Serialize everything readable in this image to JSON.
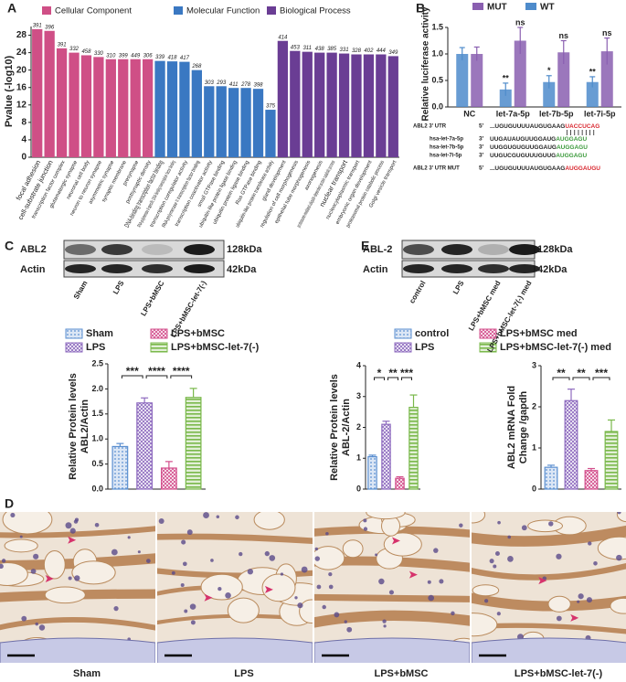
{
  "panel_labels": [
    "A",
    "B",
    "C",
    "D",
    "E"
  ],
  "chart_data": [
    {
      "type": "go_bar",
      "ylabel": "Pvalue (-log10)",
      "ylim": [
        0,
        30
      ],
      "yticks": [
        0,
        4,
        8,
        12,
        16,
        20,
        24,
        28
      ],
      "highlight_color": "#e0383f",
      "groups": [
        {
          "name": "Cellular Component",
          "color": "#cf4f86",
          "categories": [
            "focal adhesion",
            "cell-substrate junction",
            "transcription factor complex",
            "glutamatergic synapse",
            "neuronal cell body",
            "neuron to neuron synapse",
            "asymmetric synapse",
            "synaptic membrane",
            "presynapse",
            "postsynaptic density"
          ],
          "values": [
            29.4,
            29,
            25,
            24,
            23.4,
            23,
            22.5,
            22.5,
            22.5,
            22.5
          ],
          "counts": [
            391,
            396,
            391,
            332,
            458,
            330,
            310,
            399,
            449,
            306
          ],
          "highlighted": [
            0,
            1
          ]
        },
        {
          "name": "Molecular Function",
          "color": "#3a78c2",
          "categories": [
            "DNA-binding transcription factor binding",
            "RNA polymerase II-specific DNA-binding transcription factor binding",
            "transcription coregulator activity",
            "RNA polymerase II transcription factor binding",
            "transcription coactivator activity",
            "small GTPase binding",
            "ubiquitin-like protein ligase binding",
            "ubiquitin protein ligase binding",
            "Ras GTPase binding",
            "ubiquitin-like protein transferase activity"
          ],
          "values": [
            22.1,
            22,
            21.9,
            20,
            16.3,
            16.3,
            15.9,
            15.9,
            15.7,
            10.9
          ],
          "counts": [
            339,
            418,
            417,
            268,
            303,
            293,
            411,
            278,
            398,
            375
          ],
          "highlighted": [
            0
          ]
        },
        {
          "name": "Biological Process",
          "color": "#6a3d94",
          "categories": [
            "gland development",
            "regulation of cell morphogenesis",
            "epithelial tube morphogenesis",
            "axonogenesis",
            "proteasome-mediated ubiquitin-dependent protein catabolic process",
            "nuclear transport",
            "nucleocytoplasmic transport",
            "embryonic organ development",
            "proteasomal protein catabolic process",
            "Golgi vesicle transport"
          ],
          "values": [
            26.7,
            24.4,
            24.2,
            24,
            24,
            23.8,
            23.6,
            23.6,
            23.6,
            23.2
          ],
          "counts": [
            414,
            453,
            311,
            438,
            385,
            331,
            328,
            402,
            444,
            349
          ],
          "highlighted": [
            5
          ]
        }
      ]
    },
    {
      "type": "grouped_bar",
      "ylabel": "Relative luciferase activity",
      "ylim": [
        0,
        1.5
      ],
      "yticks": [
        {
          "value": 0,
          "label": "0.0"
        },
        0.5,
        {
          "value": 1,
          "label": "1.0"
        },
        1.5
      ],
      "categories": [
        "NC",
        "let-7a-5p",
        "let-7b-5p",
        "let-7i-5p"
      ],
      "series": [
        {
          "name": "WT",
          "color": "#4e8bcb",
          "values": [
            1.0,
            0.33,
            0.47,
            0.47
          ],
          "errors": [
            0.12,
            0.12,
            0.12,
            0.1
          ],
          "annotations": [
            null,
            "**",
            "*",
            "**"
          ]
        },
        {
          "name": "MUT",
          "color": "#8a5fb0",
          "values": [
            1.0,
            1.25,
            1.03,
            1.05
          ],
          "errors": [
            0.13,
            0.25,
            0.22,
            0.25
          ],
          "annotations": [
            null,
            "ns",
            "ns",
            "ns"
          ]
        }
      ]
    },
    {
      "type": "bar",
      "ylabel": [
        "Relative Protein levels",
        "ABL2/Actin"
      ],
      "ylim": [
        0,
        2.5
      ],
      "yticks": [
        {
          "value": 0,
          "label": "0.0"
        },
        0.5,
        {
          "value": 1,
          "label": "1.0"
        },
        1.5,
        {
          "value": 2,
          "label": "2.0"
        },
        2.5
      ],
      "categories": [
        "Sham",
        "LPS",
        "LPS+bMSC",
        "LPS+bMSC-let-7(-)"
      ],
      "colors": [
        "#5b8fd0",
        "#8e6bbf",
        "#d34f8c",
        "#79b84a"
      ],
      "patterns": [
        "dots",
        "checks",
        "checks",
        "stripes"
      ],
      "values": [
        0.85,
        1.72,
        0.42,
        1.83
      ],
      "errors": [
        0.06,
        0.1,
        0.13,
        0.18
      ],
      "significance": [
        "***",
        "****",
        "****"
      ]
    },
    {
      "type": "bar",
      "ylabel": [
        "Relative Protein levels",
        "ABL-2/Actin"
      ],
      "ylim": [
        0,
        4
      ],
      "yticks": [
        0,
        1,
        2,
        3,
        4
      ],
      "categories": [
        "control",
        "LPS",
        "LPS+bMSC med",
        "LPS+bMSC-let-7(-) med"
      ],
      "colors": [
        "#5b8fd0",
        "#8e6bbf",
        "#d34f8c",
        "#79b84a"
      ],
      "patterns": [
        "dots",
        "checks",
        "checks",
        "stripes"
      ],
      "values": [
        1.05,
        2.1,
        0.35,
        2.65
      ],
      "errors": [
        0.05,
        0.1,
        0.05,
        0.4
      ],
      "significance": [
        "*",
        "**",
        "***"
      ]
    },
    {
      "type": "bar",
      "ylabel": [
        "ABL2 mRNA  Fold",
        "Change /gapdh"
      ],
      "ylim": [
        0,
        3
      ],
      "yticks": [
        0,
        1,
        2,
        3
      ],
      "colors": [
        "#5b8fd0",
        "#8e6bbf",
        "#d34f8c",
        "#79b84a"
      ],
      "patterns": [
        "dots",
        "checks",
        "checks",
        "stripes"
      ],
      "values": [
        0.53,
        2.15,
        0.45,
        1.4
      ],
      "errors": [
        0.05,
        0.28,
        0.05,
        0.28
      ],
      "significance": [
        "**",
        "**",
        "***"
      ]
    }
  ],
  "sequences": [
    {
      "label": "ABL2 3' UTR",
      "end": "5'",
      "seq": "...UGUGUUUUAUGUGAAG",
      "site": "UACCUCAG",
      "site_color": "#d8262e"
    },
    {
      "label": "hsa-let-7a-5p",
      "end": "3'",
      "seq": "UUGAUAUGUUGGAUG",
      "site": "AUGGAGU",
      "site_color": "#3b9a3b"
    },
    {
      "label": "hsa-let-7b-5p",
      "end": "3'",
      "seq": "UUGGUGUGUUGGAUG",
      "site": "AUGGAGU",
      "site_color": "#3b9a3b"
    },
    {
      "label": "hsa-let-7i-5p",
      "end": "3'",
      "seq": "UUGUCGUGUUUGUUG",
      "site": "AUGGAGU",
      "site_color": "#3b9a3b"
    },
    {
      "label": "ABL2 3' UTR MUT",
      "end": "5'",
      "seq": "...UGUGUUUUAUGUGAAG",
      "site": "AUGGAUGU",
      "site_color": "#d8262e"
    }
  ],
  "blots": [
    {
      "rows": [
        "ABL2",
        "Actin"
      ],
      "sizes": [
        "128kDa",
        "42kDa"
      ],
      "lanes": [
        "Sham",
        "LPS",
        "LPS+bMSC",
        "LPS+bMSC-let-7(-)"
      ]
    },
    {
      "rows": [
        "ABL-2",
        "Actin"
      ],
      "sizes": [
        "128kDa",
        "42kDa"
      ],
      "lanes": [
        "control",
        "LPS",
        "LPS+bMSC med",
        "LPS+bMSC-let-7(-) med"
      ]
    }
  ],
  "histology": [
    "Sham",
    "LPS",
    "LPS+bMSC",
    "LPS+bMSC-let-7(-)"
  ]
}
